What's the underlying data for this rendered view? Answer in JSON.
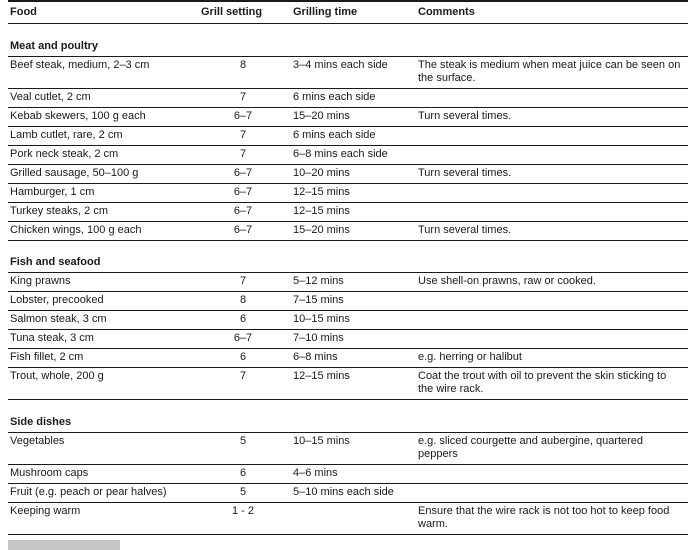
{
  "document": {
    "colors": {
      "background": "#ffffff",
      "text": "#1a1a1a",
      "rule": "#1a1a1a",
      "cutoff_gray": "#c6c6c6"
    },
    "table": {
      "columns": [
        "Food",
        "Grill setting",
        "Grilling time",
        "Comments"
      ],
      "sections": [
        {
          "title": "Meat and poultry",
          "rows": [
            {
              "food": "Beef steak, medium, 2–3 cm",
              "grill_setting": "8",
              "grilling_time": "3–4 mins each side",
              "comments": "The steak is medium when meat juice can be seen on the surface."
            },
            {
              "food": "Veal cutlet, 2 cm",
              "grill_setting": "7",
              "grilling_time": "6 mins each side",
              "comments": ""
            },
            {
              "food": "Kebab skewers, 100 g each",
              "grill_setting": "6–7",
              "grilling_time": "15–20 mins",
              "comments": "Turn several times."
            },
            {
              "food": "Lamb cutlet, rare, 2 cm",
              "grill_setting": "7",
              "grilling_time": "6 mins each side",
              "comments": ""
            },
            {
              "food": "Pork neck steak, 2 cm",
              "grill_setting": "7",
              "grilling_time": "6–8 mins each side",
              "comments": ""
            },
            {
              "food": "Grilled sausage, 50–100 g",
              "grill_setting": "6–7",
              "grilling_time": "10–20 mins",
              "comments": "Turn several times."
            },
            {
              "food": "Hamburger, 1 cm",
              "grill_setting": "6–7",
              "grilling_time": "12–15 mins",
              "comments": ""
            },
            {
              "food": "Turkey steaks, 2 cm",
              "grill_setting": "6–7",
              "grilling_time": "12–15 mins",
              "comments": ""
            },
            {
              "food": "Chicken wings, 100 g each",
              "grill_setting": "6–7",
              "grilling_time": "15–20 mins",
              "comments": "Turn several times."
            }
          ]
        },
        {
          "title": "Fish and seafood",
          "rows": [
            {
              "food": "King prawns",
              "grill_setting": "7",
              "grilling_time": "5–12 mins",
              "comments": "Use shell-on prawns, raw or cooked."
            },
            {
              "food": "Lobster, precooked",
              "grill_setting": "8",
              "grilling_time": "7–15 mins",
              "comments": ""
            },
            {
              "food": "Salmon steak, 3 cm",
              "grill_setting": "6",
              "grilling_time": "10–15 mins",
              "comments": ""
            },
            {
              "food": "Tuna steak, 3 cm",
              "grill_setting": "6–7",
              "grilling_time": "7–10 mins",
              "comments": ""
            },
            {
              "food": "Fish fillet, 2 cm",
              "grill_setting": "6",
              "grilling_time": "6–8 mins",
              "comments": "e.g. herring or halibut"
            },
            {
              "food": "Trout, whole, 200 g",
              "grill_setting": "7",
              "grilling_time": "12–15 mins",
              "comments": "Coat the trout with oil to prevent the skin sticking to the wire rack."
            }
          ]
        },
        {
          "title": "Side dishes",
          "rows": [
            {
              "food": "Vegetables",
              "grill_setting": "5",
              "grilling_time": "10–15 mins",
              "comments": "e.g. sliced courgette and aubergine, quartered peppers"
            },
            {
              "food": "Mushroom caps",
              "grill_setting": "6",
              "grilling_time": "4–6 mins",
              "comments": ""
            },
            {
              "food": "Fruit (e.g. peach or pear halves)",
              "grill_setting": "5",
              "grilling_time": "5–10 mins each side",
              "comments": ""
            },
            {
              "food": "Keeping warm",
              "grill_setting": "1 - 2",
              "grilling_time": "",
              "comments": "Ensure that the wire rack is not too hot to keep food warm."
            }
          ]
        }
      ]
    }
  }
}
